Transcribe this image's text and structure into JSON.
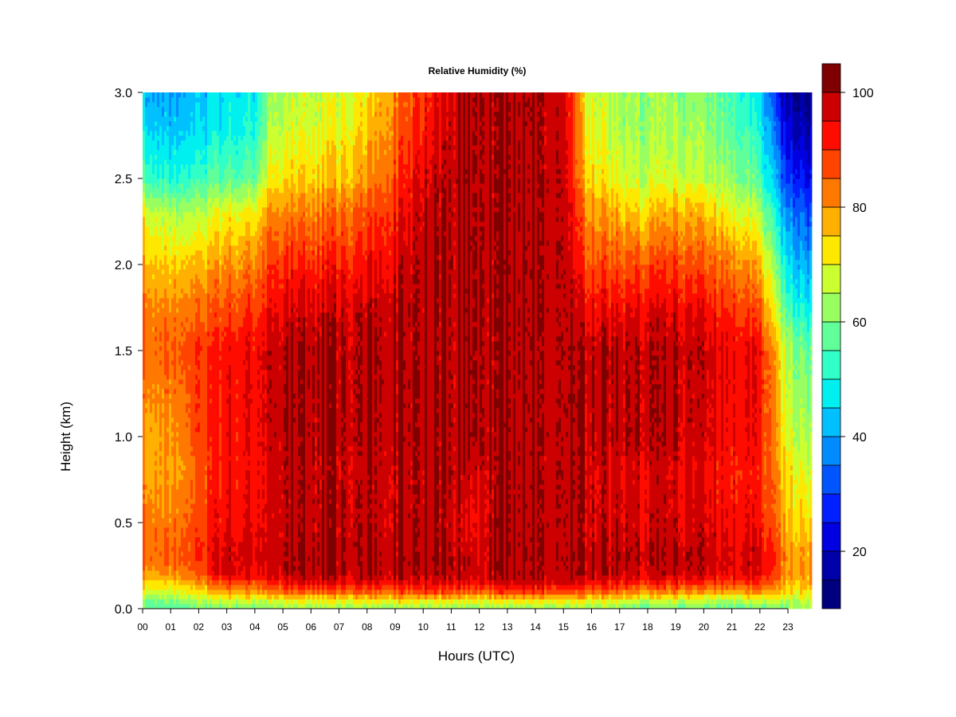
{
  "chart_data": {
    "type": "heatmap",
    "title": "Relative Humidity (%)",
    "xlabel": "Hours (UTC)",
    "ylabel": "Height (km)",
    "x_ticks": [
      "00",
      "01",
      "02",
      "03",
      "04",
      "05",
      "06",
      "07",
      "08",
      "09",
      "10",
      "11",
      "12",
      "13",
      "14",
      "15",
      "16",
      "17",
      "18",
      "19",
      "20",
      "21",
      "22",
      "23"
    ],
    "y_ticks": [
      "0.0",
      "0.5",
      "1.0",
      "1.5",
      "2.0",
      "2.5",
      "3.0"
    ],
    "xlim": [
      0,
      23.85
    ],
    "ylim": [
      0,
      3.0
    ],
    "colorbar": {
      "min": 10,
      "max": 100,
      "step": 5,
      "tick_labels": [
        "20",
        "40",
        "60",
        "80",
        "100"
      ],
      "tick_values": [
        20,
        40,
        60,
        80,
        100
      ],
      "colors": [
        "#00007F",
        "#0000AA",
        "#0000E0",
        "#0020FF",
        "#0055FF",
        "#008CFF",
        "#00C0FF",
        "#00F0F0",
        "#30FFC8",
        "#60FF9A",
        "#99FF60",
        "#CCFF30",
        "#FFE800",
        "#FFB000",
        "#FF7800",
        "#FF4400",
        "#FF0C00",
        "#CC0000",
        "#7F0000"
      ]
    },
    "grid": false,
    "profile_heights_km": [
      0.0,
      0.05,
      0.1,
      0.15,
      0.2,
      0.3,
      0.5,
      0.8,
      1.0,
      1.5,
      1.7,
      2.0,
      2.3,
      2.5,
      2.8,
      3.0
    ],
    "profiles": [
      {
        "hour": 0.0,
        "rh": [
          58,
          62,
          70,
          75,
          80,
          86,
          84,
          80,
          80,
          84,
          84,
          78,
          70,
          56,
          46,
          42
        ]
      },
      {
        "hour": 1.0,
        "rh": [
          58,
          62,
          70,
          76,
          82,
          86,
          84,
          80,
          81,
          86,
          84,
          76,
          66,
          52,
          44,
          40
        ]
      },
      {
        "hour": 2.0,
        "rh": [
          58,
          64,
          72,
          78,
          84,
          88,
          86,
          84,
          86,
          88,
          84,
          76,
          64,
          52,
          44,
          42
        ]
      },
      {
        "hour": 2.5,
        "rh": [
          60,
          68,
          78,
          86,
          94,
          96,
          94,
          92,
          92,
          92,
          88,
          80,
          70,
          58,
          48,
          46
        ]
      },
      {
        "hour": 3.0,
        "rh": [
          60,
          68,
          80,
          88,
          96,
          97,
          94,
          92,
          93,
          93,
          88,
          80,
          70,
          56,
          48,
          46
        ]
      },
      {
        "hour": 4.0,
        "rh": [
          60,
          68,
          80,
          88,
          95,
          97,
          95,
          93,
          94,
          94,
          90,
          82,
          72,
          58,
          50,
          48
        ]
      },
      {
        "hour": 4.5,
        "rh": [
          62,
          70,
          84,
          92,
          98,
          99,
          98,
          98,
          99,
          99,
          96,
          90,
          82,
          72,
          66,
          64
        ]
      },
      {
        "hour": 6.0,
        "rh": [
          62,
          70,
          86,
          94,
          99,
          99,
          98,
          98,
          99,
          99,
          97,
          90,
          82,
          74,
          68,
          66
        ]
      },
      {
        "hour": 7.0,
        "rh": [
          62,
          72,
          86,
          94,
          99,
          99,
          99,
          98,
          99,
          99,
          98,
          92,
          84,
          76,
          70,
          68
        ]
      },
      {
        "hour": 8.0,
        "rh": [
          62,
          72,
          86,
          94,
          99,
          99,
          98,
          98,
          99,
          99,
          98,
          92,
          86,
          80,
          74,
          72
        ]
      },
      {
        "hour": 9.0,
        "rh": [
          62,
          72,
          86,
          94,
          99,
          99,
          98,
          98,
          99,
          99,
          99,
          96,
          92,
          88,
          84,
          82
        ]
      },
      {
        "hour": 10.0,
        "rh": [
          62,
          72,
          88,
          96,
          99,
          99,
          99,
          99,
          99,
          99,
          99,
          99,
          98,
          96,
          92,
          90
        ]
      },
      {
        "hour": 11.0,
        "rh": [
          62,
          72,
          88,
          96,
          99,
          99,
          98,
          99,
          99,
          99,
          99,
          99,
          99,
          99,
          98,
          97
        ]
      },
      {
        "hour": 11.8,
        "rh": [
          60,
          70,
          84,
          92,
          96,
          96,
          92,
          96,
          99,
          99,
          99,
          99,
          99,
          99,
          99,
          99
        ]
      },
      {
        "hour": 12.5,
        "rh": [
          62,
          72,
          88,
          96,
          99,
          99,
          99,
          99,
          99,
          99,
          99,
          99,
          99,
          99,
          99,
          99
        ]
      },
      {
        "hour": 14.0,
        "rh": [
          62,
          72,
          88,
          96,
          99,
          99,
          99,
          99,
          99,
          99,
          99,
          99,
          99,
          99,
          99,
          99
        ]
      },
      {
        "hour": 15.0,
        "rh": [
          62,
          72,
          88,
          96,
          99,
          99,
          99,
          99,
          99,
          99,
          99,
          99,
          99,
          99,
          98,
          98
        ]
      },
      {
        "hour": 15.8,
        "rh": [
          62,
          72,
          86,
          94,
          99,
          99,
          98,
          98,
          99,
          99,
          96,
          88,
          82,
          76,
          72,
          70
        ]
      },
      {
        "hour": 17.0,
        "rh": [
          60,
          70,
          84,
          92,
          98,
          99,
          96,
          96,
          98,
          98,
          94,
          86,
          76,
          68,
          64,
          62
        ]
      },
      {
        "hour": 17.7,
        "rh": [
          56,
          66,
          80,
          90,
          96,
          98,
          96,
          96,
          98,
          98,
          96,
          86,
          74,
          66,
          62,
          62
        ]
      },
      {
        "hour": 19.0,
        "rh": [
          60,
          68,
          82,
          92,
          98,
          99,
          97,
          96,
          98,
          98,
          96,
          88,
          78,
          68,
          64,
          62
        ]
      },
      {
        "hour": 20.0,
        "rh": [
          58,
          66,
          80,
          90,
          97,
          98,
          96,
          94,
          96,
          97,
          94,
          86,
          76,
          66,
          62,
          60
        ]
      },
      {
        "hour": 21.0,
        "rh": [
          58,
          66,
          80,
          90,
          96,
          98,
          95,
          93,
          95,
          96,
          92,
          84,
          72,
          64,
          58,
          56
        ]
      },
      {
        "hour": 22.0,
        "rh": [
          58,
          66,
          80,
          88,
          94,
          96,
          92,
          90,
          92,
          92,
          86,
          76,
          64,
          54,
          48,
          44
        ]
      },
      {
        "hour": 22.8,
        "rh": [
          60,
          66,
          76,
          80,
          84,
          84,
          80,
          76,
          74,
          70,
          62,
          52,
          42,
          34,
          26,
          20
        ]
      },
      {
        "hour": 23.3,
        "rh": [
          62,
          66,
          72,
          76,
          78,
          78,
          74,
          70,
          66,
          60,
          52,
          42,
          34,
          26,
          18,
          14
        ]
      },
      {
        "hour": 23.85,
        "rh": [
          62,
          66,
          72,
          76,
          78,
          78,
          72,
          66,
          62,
          56,
          48,
          38,
          30,
          22,
          16,
          12
        ]
      }
    ]
  }
}
